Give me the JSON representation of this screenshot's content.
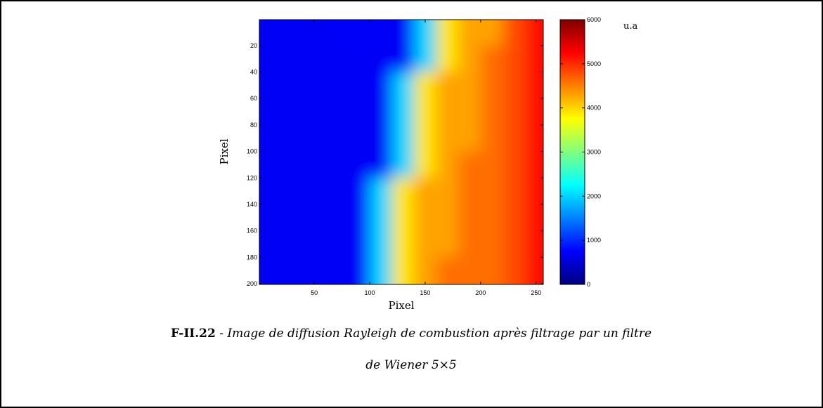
{
  "chart_data": {
    "type": "heatmap",
    "xlabel": "Pixel",
    "ylabel": "Pixel",
    "x": [
      10,
      30,
      50,
      70,
      90,
      110,
      130,
      150,
      170,
      190,
      210,
      230,
      250
    ],
    "y": [
      10,
      30,
      50,
      70,
      90,
      110,
      130,
      150,
      170,
      190
    ],
    "values": [
      [
        700,
        700,
        680,
        700,
        720,
        700,
        700,
        2000,
        3900,
        4300,
        4300,
        4800,
        5200
      ],
      [
        700,
        700,
        700,
        700,
        700,
        700,
        700,
        2000,
        3900,
        4300,
        4600,
        4800,
        5200
      ],
      [
        700,
        700,
        700,
        700,
        700,
        700,
        2000,
        3900,
        4300,
        4300,
        4600,
        4800,
        5200
      ],
      [
        700,
        700,
        700,
        700,
        700,
        700,
        2000,
        3900,
        4300,
        4300,
        4600,
        4800,
        5200
      ],
      [
        700,
        700,
        700,
        700,
        700,
        700,
        2000,
        3900,
        4300,
        4300,
        4600,
        4800,
        5200
      ],
      [
        700,
        700,
        700,
        700,
        700,
        700,
        2000,
        3900,
        4300,
        4600,
        4600,
        4800,
        5200
      ],
      [
        700,
        700,
        700,
        700,
        700,
        2000,
        3900,
        4300,
        4300,
        4600,
        4600,
        4800,
        5200
      ],
      [
        700,
        700,
        700,
        700,
        700,
        2000,
        3900,
        4300,
        4300,
        4600,
        4600,
        4800,
        5200
      ],
      [
        700,
        700,
        700,
        700,
        700,
        2000,
        3900,
        4300,
        4300,
        4600,
        4600,
        4800,
        5200
      ],
      [
        700,
        700,
        700,
        700,
        700,
        2000,
        3900,
        4300,
        4600,
        4600,
        4600,
        4800,
        5200
      ]
    ],
    "xlim": [
      0.5,
      256.5
    ],
    "ylim": [
      0.5,
      200.5
    ],
    "y_reversed": true,
    "xticks": [
      50,
      100,
      150,
      200,
      250
    ],
    "yticks": [
      20,
      40,
      60,
      80,
      100,
      120,
      140,
      160,
      180,
      200
    ],
    "colormap": "jet",
    "colorbar": {
      "label": "u.a",
      "lim": [
        0,
        6000
      ],
      "ticks": [
        0,
        1000,
        2000,
        3000,
        4000,
        5000,
        6000
      ]
    }
  },
  "caption": {
    "label": "F-II.22",
    "separator": "-",
    "lines": [
      "Image de diffusion Rayleigh de combustion après filtrage par un filtre",
      "de Wiener 5×5"
    ]
  }
}
